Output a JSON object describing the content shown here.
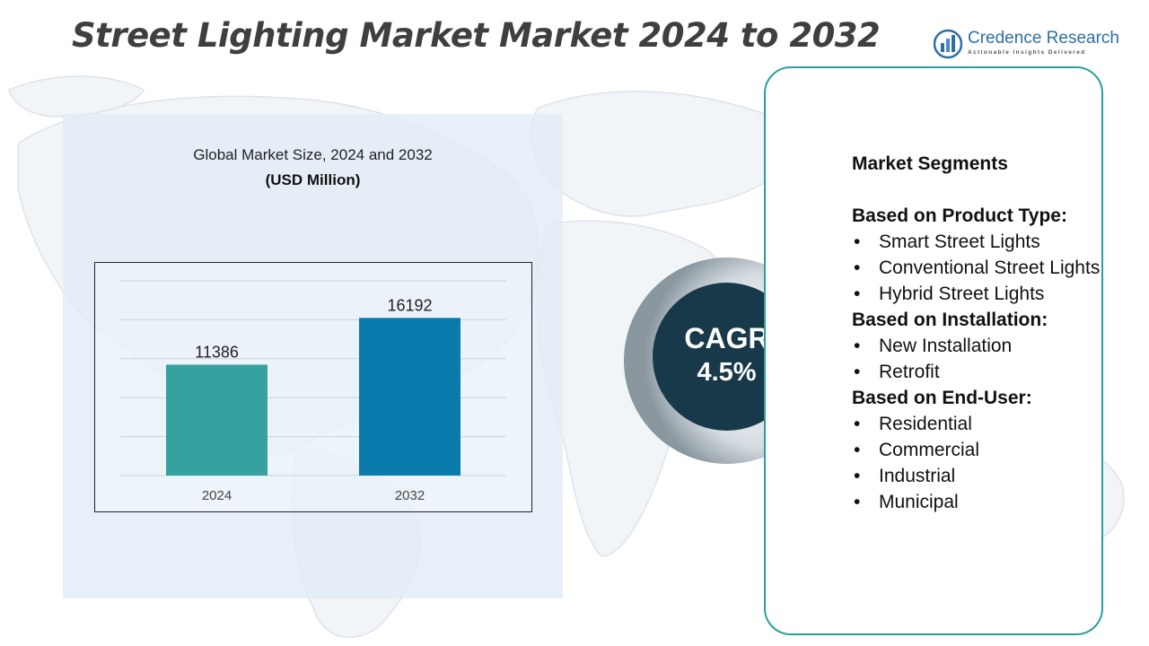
{
  "page": {
    "title": "Street Lighting Market Market 2024 to 2032"
  },
  "logo": {
    "name": "Credence Research",
    "tagline": "Actionable Insights Delivered",
    "icon": "bar-chart-logo-icon",
    "color": "#2e6ea6"
  },
  "chart_panel": {
    "title": "Global Market Size, 2024 and 2032",
    "unit": "(USD Million)"
  },
  "chart_data": {
    "type": "bar",
    "categories": [
      "2024",
      "2032"
    ],
    "values": [
      11386,
      16192
    ],
    "colors": [
      "#35a29f",
      "#0b7aac"
    ],
    "data_labels": [
      "11386",
      "16192"
    ],
    "ylim": [
      0,
      20000
    ],
    "grid": true,
    "title": "Global Market Size, 2024 and 2032",
    "ylabel": "(USD Million)",
    "xlabel": ""
  },
  "cagr": {
    "label": "CAGR",
    "value": "4.5%",
    "color": "#17394a"
  },
  "segments": {
    "heading": "Market Segments",
    "border_color": "#2aa198",
    "groups": [
      {
        "title": "Based on Product Type:",
        "items": [
          "Smart Street Lights",
          "Conventional Street Lights",
          "Hybrid Street Lights"
        ]
      },
      {
        "title": "Based on Installation:",
        "items": [
          "New Installation",
          "Retrofit"
        ]
      },
      {
        "title": "Based on End-User:",
        "items": [
          "Residential",
          "Commercial",
          "Industrial",
          "Municipal"
        ]
      }
    ]
  }
}
